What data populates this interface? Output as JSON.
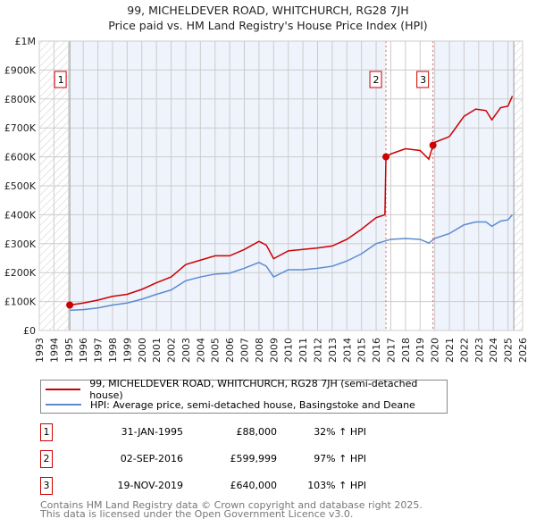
{
  "chart_data": {
    "type": "line",
    "title": "99, MICHELDEVER ROAD, WHITCHURCH, RG28 7JH",
    "subtitle": "Price paid vs. HM Land Registry's House Price Index (HPI)",
    "xlim": [
      1993,
      2026
    ],
    "ylim": [
      0,
      1000000
    ],
    "y_ticks": [
      {
        "v": 0,
        "label": "£0"
      },
      {
        "v": 100000,
        "label": "£100K"
      },
      {
        "v": 200000,
        "label": "£200K"
      },
      {
        "v": 300000,
        "label": "£300K"
      },
      {
        "v": 400000,
        "label": "£400K"
      },
      {
        "v": 500000,
        "label": "£500K"
      },
      {
        "v": 600000,
        "label": "£600K"
      },
      {
        "v": 700000,
        "label": "£700K"
      },
      {
        "v": 800000,
        "label": "£800K"
      },
      {
        "v": 900000,
        "label": "£900K"
      },
      {
        "v": 1000000,
        "label": "£1M"
      }
    ],
    "x_ticks": [
      "1993",
      "1994",
      "1995",
      "1996",
      "1997",
      "1998",
      "1999",
      "2000",
      "2001",
      "2002",
      "2003",
      "2004",
      "2005",
      "2006",
      "2007",
      "2008",
      "2009",
      "2010",
      "2011",
      "2012",
      "2013",
      "2014",
      "2015",
      "2016",
      "2017",
      "2018",
      "2019",
      "2020",
      "2021",
      "2022",
      "2023",
      "2024",
      "2025",
      "2026"
    ],
    "series": [
      {
        "name": "99, MICHELDEVER ROAD, WHITCHURCH, RG28 7JH (semi-detached house)",
        "color": "#cc0000",
        "x": [
          1995.08,
          1996,
          1997,
          1998,
          1999,
          2000,
          2001,
          2002,
          2003,
          2004,
          2005,
          2006,
          2007,
          2008,
          2008.5,
          2009,
          2010,
          2011,
          2012,
          2013,
          2014,
          2015,
          2016,
          2016.6,
          2016.67,
          2017,
          2018,
          2019,
          2019.6,
          2019.88,
          2020,
          2021,
          2022,
          2022.8,
          2023.5,
          2023.9,
          2024.5,
          2025,
          2025.3
        ],
        "y": [
          88000,
          95000,
          105000,
          118000,
          125000,
          142000,
          165000,
          185000,
          228000,
          243000,
          258000,
          258000,
          280000,
          308000,
          295000,
          248000,
          275000,
          280000,
          285000,
          292000,
          315000,
          350000,
          390000,
          400000,
          599999,
          610000,
          628000,
          622000,
          592000,
          640000,
          650000,
          670000,
          740000,
          765000,
          760000,
          728000,
          770000,
          775000,
          810000
        ]
      },
      {
        "name": "HPI: Average price, semi-detached house, Basingstoke and Deane",
        "color": "#5b8bd0",
        "x": [
          1995.08,
          1996,
          1997,
          1998,
          1999,
          2000,
          2001,
          2002,
          2003,
          2004,
          2005,
          2006,
          2007,
          2008,
          2008.5,
          2009,
          2010,
          2011,
          2012,
          2013,
          2014,
          2015,
          2016,
          2017,
          2018,
          2019,
          2019.6,
          2020,
          2021,
          2022,
          2022.8,
          2023.5,
          2023.9,
          2024.5,
          2025,
          2025.3
        ],
        "y": [
          70000,
          72000,
          78000,
          88000,
          95000,
          108000,
          125000,
          140000,
          172000,
          185000,
          195000,
          198000,
          215000,
          235000,
          222000,
          185000,
          210000,
          210000,
          215000,
          222000,
          240000,
          265000,
          300000,
          315000,
          318000,
          315000,
          302000,
          318000,
          335000,
          365000,
          375000,
          375000,
          360000,
          378000,
          382000,
          400000
        ]
      }
    ],
    "sales": [
      {
        "id": "1",
        "x": 1995.08,
        "y": 88000,
        "date": "31-JAN-1995",
        "price": "£88,000",
        "hpi": "32% ↑ HPI"
      },
      {
        "id": "2",
        "x": 2016.67,
        "y": 599999,
        "date": "02-SEP-2016",
        "price": "£599,999",
        "hpi": "97% ↑ HPI"
      },
      {
        "id": "3",
        "x": 2019.88,
        "y": 640000,
        "date": "19-NOV-2019",
        "price": "£640,000",
        "hpi": "103% ↑ HPI"
      }
    ],
    "data_end": 2025.4
  },
  "footer": [
    "Contains HM Land Registry data © Crown copyright and database right 2025.",
    "This data is licensed under the Open Government Licence v3.0."
  ]
}
